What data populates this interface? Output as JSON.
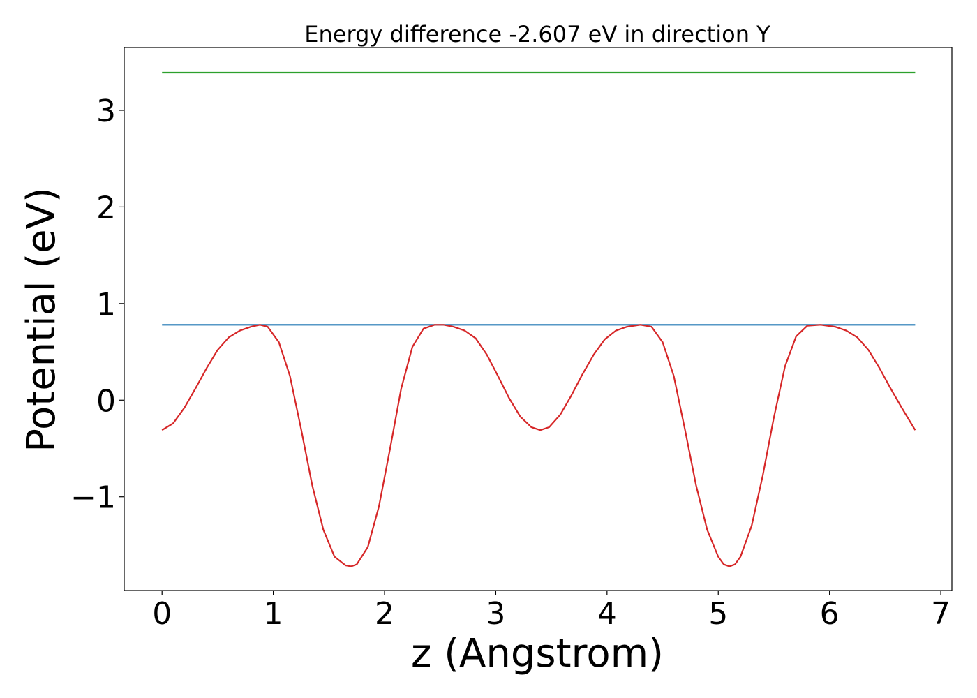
{
  "chart_data": {
    "type": "line",
    "title": "Energy difference -2.607 eV in direction Y",
    "xlabel": "z (Angstrom)",
    "ylabel": "Potential (eV)",
    "xlim": [
      -0.34,
      7.1
    ],
    "ylim": [
      -1.97,
      3.65
    ],
    "xticks": [
      0,
      1,
      2,
      3,
      4,
      5,
      6,
      7
    ],
    "xtick_labels": [
      "0",
      "1",
      "2",
      "3",
      "4",
      "5",
      "6",
      "7"
    ],
    "yticks": [
      -1,
      0,
      1,
      2,
      3
    ],
    "ytick_labels": [
      "−1",
      "0",
      "1",
      "2",
      "3"
    ],
    "grid": false,
    "series": [
      {
        "color": "#2ca02c",
        "x": [
          0,
          6.77
        ],
        "y": [
          3.39,
          3.39
        ]
      },
      {
        "color": "#1f77b4",
        "x": [
          0,
          6.77
        ],
        "y": [
          0.78,
          0.78
        ]
      },
      {
        "color": "#d62728",
        "x": [
          0,
          0.1,
          0.2,
          0.3,
          0.4,
          0.5,
          0.6,
          0.7,
          0.8,
          0.88,
          0.95,
          1.05,
          1.15,
          1.25,
          1.35,
          1.45,
          1.55,
          1.65,
          1.7,
          1.75,
          1.85,
          1.95,
          2.05,
          2.15,
          2.25,
          2.35,
          2.45,
          2.53,
          2.62,
          2.72,
          2.82,
          2.92,
          3.02,
          3.12,
          3.22,
          3.32,
          3.4,
          3.48,
          3.58,
          3.68,
          3.78,
          3.88,
          3.98,
          4.08,
          4.18,
          4.3,
          4.4,
          4.5,
          4.6,
          4.7,
          4.8,
          4.9,
          5.0,
          5.05,
          5.1,
          5.15,
          5.2,
          5.3,
          5.4,
          5.5,
          5.6,
          5.7,
          5.8,
          5.92,
          6.05,
          6.15,
          6.25,
          6.35,
          6.45,
          6.55,
          6.65,
          6.77
        ],
        "y": [
          -0.31,
          -0.24,
          -0.08,
          0.12,
          0.33,
          0.52,
          0.65,
          0.72,
          0.76,
          0.78,
          0.76,
          0.6,
          0.25,
          -0.3,
          -0.88,
          -1.34,
          -1.62,
          -1.71,
          -1.72,
          -1.7,
          -1.52,
          -1.1,
          -0.5,
          0.12,
          0.55,
          0.74,
          0.78,
          0.78,
          0.76,
          0.72,
          0.64,
          0.47,
          0.25,
          0.02,
          -0.17,
          -0.28,
          -0.31,
          -0.28,
          -0.15,
          0.05,
          0.27,
          0.47,
          0.63,
          0.72,
          0.76,
          0.78,
          0.76,
          0.6,
          0.25,
          -0.3,
          -0.88,
          -1.34,
          -1.62,
          -1.7,
          -1.72,
          -1.7,
          -1.62,
          -1.3,
          -0.78,
          -0.18,
          0.35,
          0.66,
          0.77,
          0.78,
          0.76,
          0.72,
          0.65,
          0.52,
          0.33,
          0.12,
          -0.08,
          -0.31
        ]
      }
    ]
  }
}
